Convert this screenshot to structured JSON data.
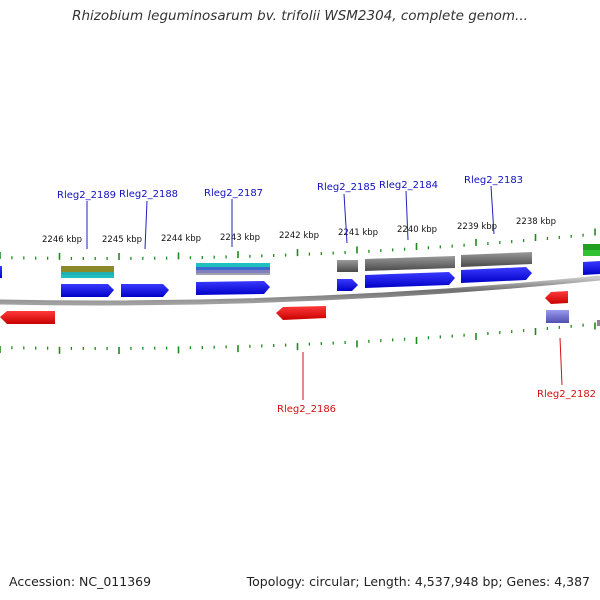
{
  "title": "Rhizobium leguminosarum bv. trifolii WSM2304, complete genom...",
  "footer": {
    "accession": "Accession: NC_011369",
    "summary": "Topology: circular; Length: 4,537,948 bp; Genes: 4,387"
  },
  "colors": {
    "backbone": "#8a8a8a",
    "tick": "#1e8a1e",
    "forward_label": "#1010c0",
    "reverse_label": "#d01010",
    "cds_forward": "#1515e0",
    "cds_reverse": "#e01010",
    "gray_feature": "#6a6a6a",
    "olive_feature": "#8a8a2a",
    "teal_feature": "#20b0b0",
    "purple_feature": "#7070d0",
    "green_feature": "#20a020"
  },
  "kbp_labels": [
    "2246 kbp",
    "2245 kbp",
    "2244 kbp",
    "2243 kbp",
    "2242 kbp",
    "2241 kbp",
    "2240 kbp",
    "2239 kbp",
    "2238 kbp"
  ],
  "genes_forward": [
    "Rleg2_2189",
    "Rleg2_2188",
    "Rleg2_2187",
    "Rleg2_2185",
    "Rleg2_2184",
    "Rleg2_2183"
  ],
  "genes_reverse": [
    "Rleg2_2186",
    "Rleg2_2182"
  ]
}
